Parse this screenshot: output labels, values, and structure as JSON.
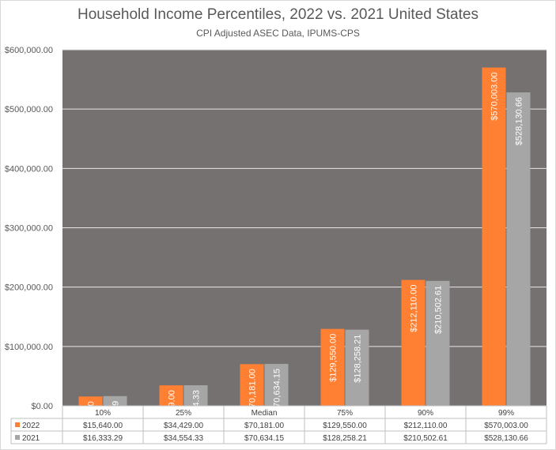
{
  "chart_data": {
    "type": "bar",
    "title": "Household Income Percentiles, 2022 vs. 2021 United States",
    "subtitle": "CPI Adjusted ASEC Data, IPUMS-CPS",
    "categories": [
      "10%",
      "25%",
      "Median",
      "75%",
      "90%",
      "99%"
    ],
    "series": [
      {
        "name": "2022",
        "color": "#ff7f33",
        "values": [
          15640.0,
          34429.0,
          70181.0,
          129550.0,
          212110.0,
          570003.0
        ],
        "labels": [
          "$15,640.00",
          "$34,429.00",
          "$70,181.00",
          "$129,550.00",
          "$212,110.00",
          "$570,003.00"
        ]
      },
      {
        "name": "2021",
        "color": "#a6a6a6",
        "values": [
          16333.29,
          34554.33,
          70634.15,
          128258.21,
          210502.61,
          528130.66
        ],
        "labels": [
          "$16,333.29",
          "$34,554.33",
          "$70,634.15",
          "$128,258.21",
          "$210,502.61",
          "$528,130.66"
        ]
      }
    ],
    "ylim": [
      0,
      600000
    ],
    "yticks": [
      0,
      100000,
      200000,
      300000,
      400000,
      500000,
      600000
    ],
    "ytick_labels": [
      "$0.00",
      "$100,000.00",
      "$200,000.00",
      "$300,000.00",
      "$400,000.00",
      "$500,000.00",
      "$600,000.00"
    ],
    "plot_background": "#767171",
    "grid": true,
    "legend": "data table",
    "data_table": true
  }
}
